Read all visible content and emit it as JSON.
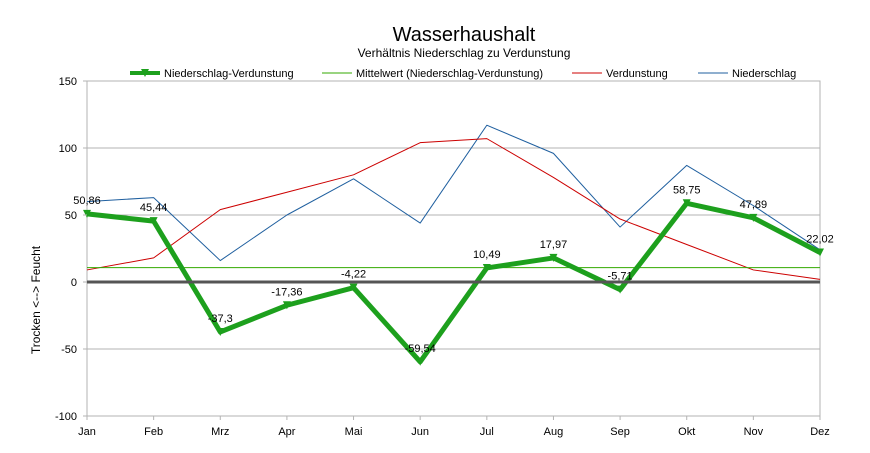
{
  "chart_data": {
    "type": "line",
    "title": "Wasserhaushalt",
    "subtitle": "Verhältnis Niederschlag zu Verdunstung",
    "xlabel": "",
    "ylabel": "Trocken  <-->  Feucht",
    "ylim": [
      -100,
      150
    ],
    "yticks": [
      "150",
      "100",
      "50",
      "0",
      "-50",
      "-100"
    ],
    "categories": [
      "Jan",
      "Feb",
      "Mrz",
      "Apr",
      "Mai",
      "Jun",
      "Jul",
      "Aug",
      "Sep",
      "Okt",
      "Nov",
      "Dez"
    ],
    "grid": true,
    "legend_position": "top",
    "series": [
      {
        "name": "Niederschlag-Verdunstung",
        "color": "#1da01d",
        "values": [
          50.86,
          45.44,
          -37.3,
          -17.36,
          -4.22,
          -59.54,
          10.49,
          17.97,
          -5.71,
          58.75,
          47.89,
          22.02
        ],
        "labels": [
          "50,86",
          "45,44",
          "-37,3",
          "-17,36",
          "-4,22",
          "-59,54",
          "10,49",
          "17,97",
          "-5,71",
          "58,75",
          "47,89",
          "22,02"
        ]
      },
      {
        "name": "Mittelwert (Niederschlag-Verdunstung)",
        "color": "#33aa00",
        "values": [
          10.72,
          10.72,
          10.72,
          10.72,
          10.72,
          10.72,
          10.72,
          10.72,
          10.72,
          10.72,
          10.72,
          10.72
        ]
      },
      {
        "name": "Verdunstung",
        "color": "#cc0000",
        "values": [
          9,
          18,
          54,
          67,
          80,
          104,
          107,
          78,
          47,
          28,
          9,
          2
        ]
      },
      {
        "name": "Niederschlag",
        "color": "#1f5f9f",
        "values": [
          60,
          63,
          16,
          50,
          77,
          44,
          117,
          96,
          41,
          87,
          57,
          24
        ]
      }
    ],
    "zero_line_color": "#555555"
  }
}
